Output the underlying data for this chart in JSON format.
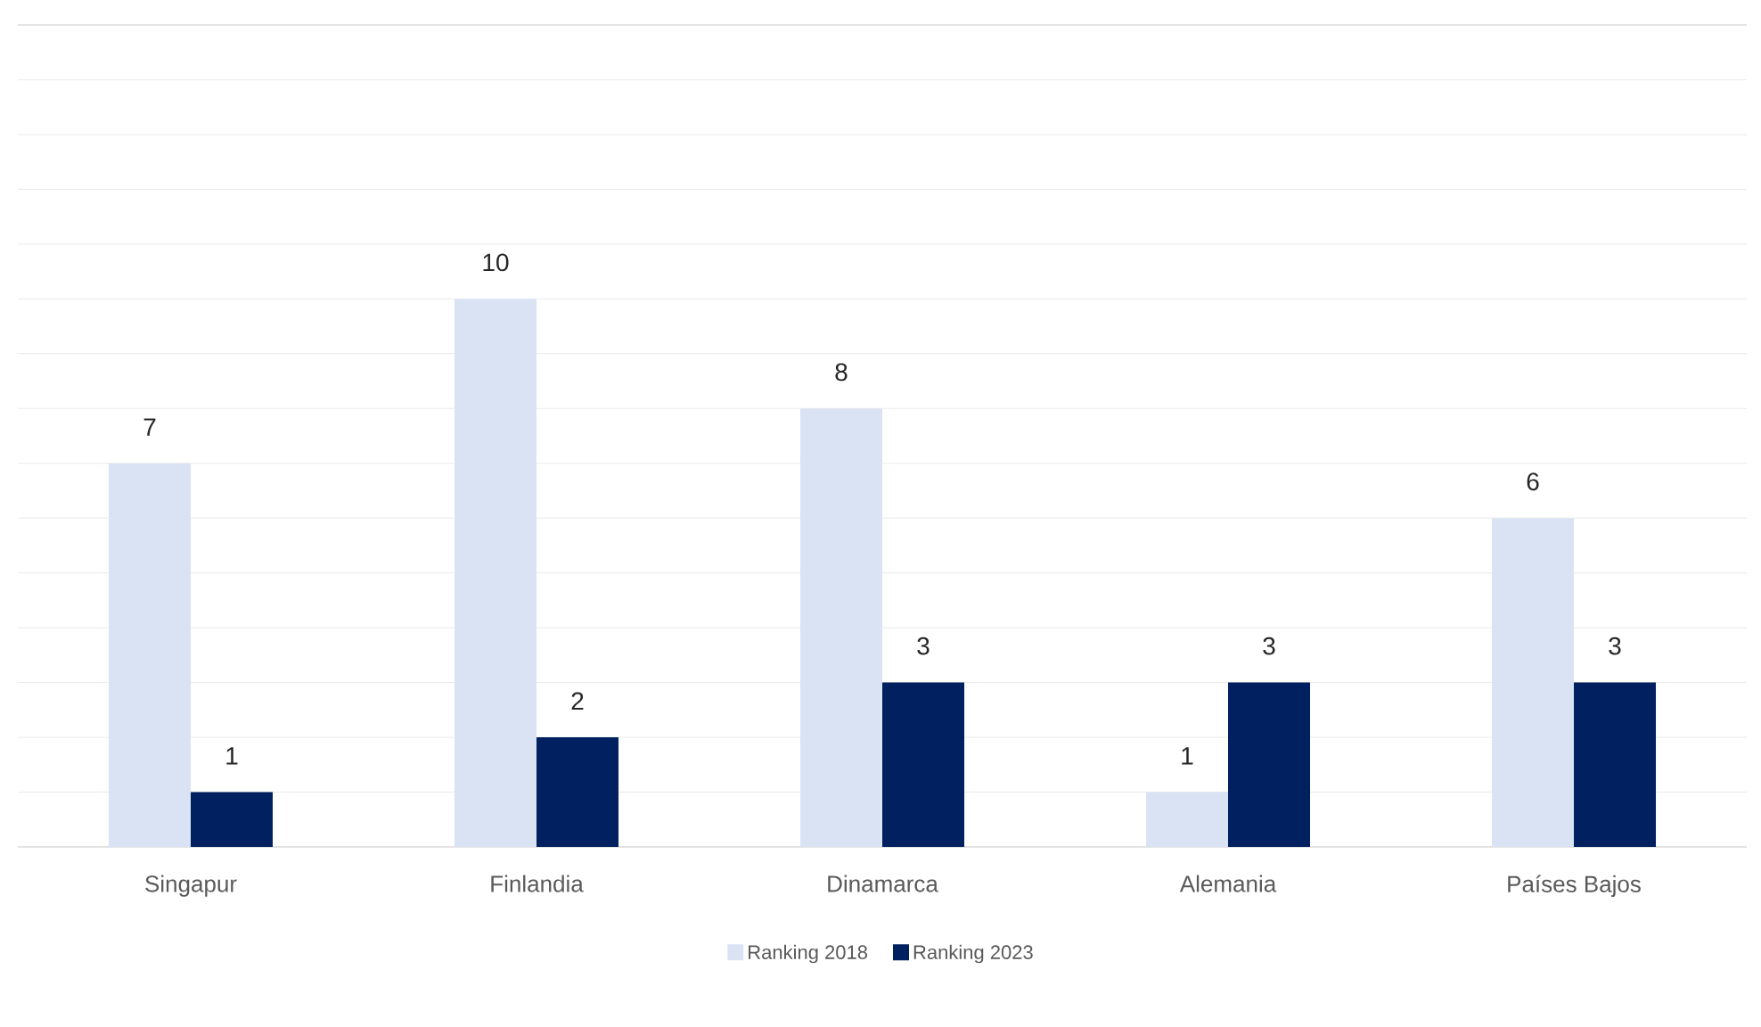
{
  "chart_data": {
    "type": "bar",
    "categories": [
      "Singapur",
      "Finlandia",
      "Dinamarca",
      "Alemania",
      "Países Bajos"
    ],
    "series": [
      {
        "name": "Ranking 2018",
        "color": "#dae3f3",
        "values": [
          7,
          10,
          8,
          1,
          6
        ]
      },
      {
        "name": "Ranking 2023",
        "color": "#002060",
        "values": [
          1,
          2,
          3,
          3,
          3
        ]
      }
    ],
    "ylim": [
      0,
      15
    ],
    "yticks": [
      {
        "value": 0,
        "label": null
      },
      {
        "value": 1,
        "label": null
      },
      {
        "value": 2,
        "label": null
      },
      {
        "value": 3,
        "label": null
      },
      {
        "value": 4,
        "label": null
      },
      {
        "value": 5,
        "label": null
      },
      {
        "value": 6,
        "label": null
      },
      {
        "value": 7,
        "label": null
      },
      {
        "value": 8,
        "label": null
      },
      {
        "value": 9,
        "label": null
      },
      {
        "value": 10,
        "label": null
      },
      {
        "value": 11,
        "label": null
      },
      {
        "value": 12,
        "label": null
      },
      {
        "value": 13,
        "label": null
      },
      {
        "value": 14,
        "label": null
      },
      {
        "value": 15,
        "label": null
      }
    ],
    "tick_labels": "x",
    "grid": "y",
    "legend": "bottom",
    "data_labels": true
  }
}
